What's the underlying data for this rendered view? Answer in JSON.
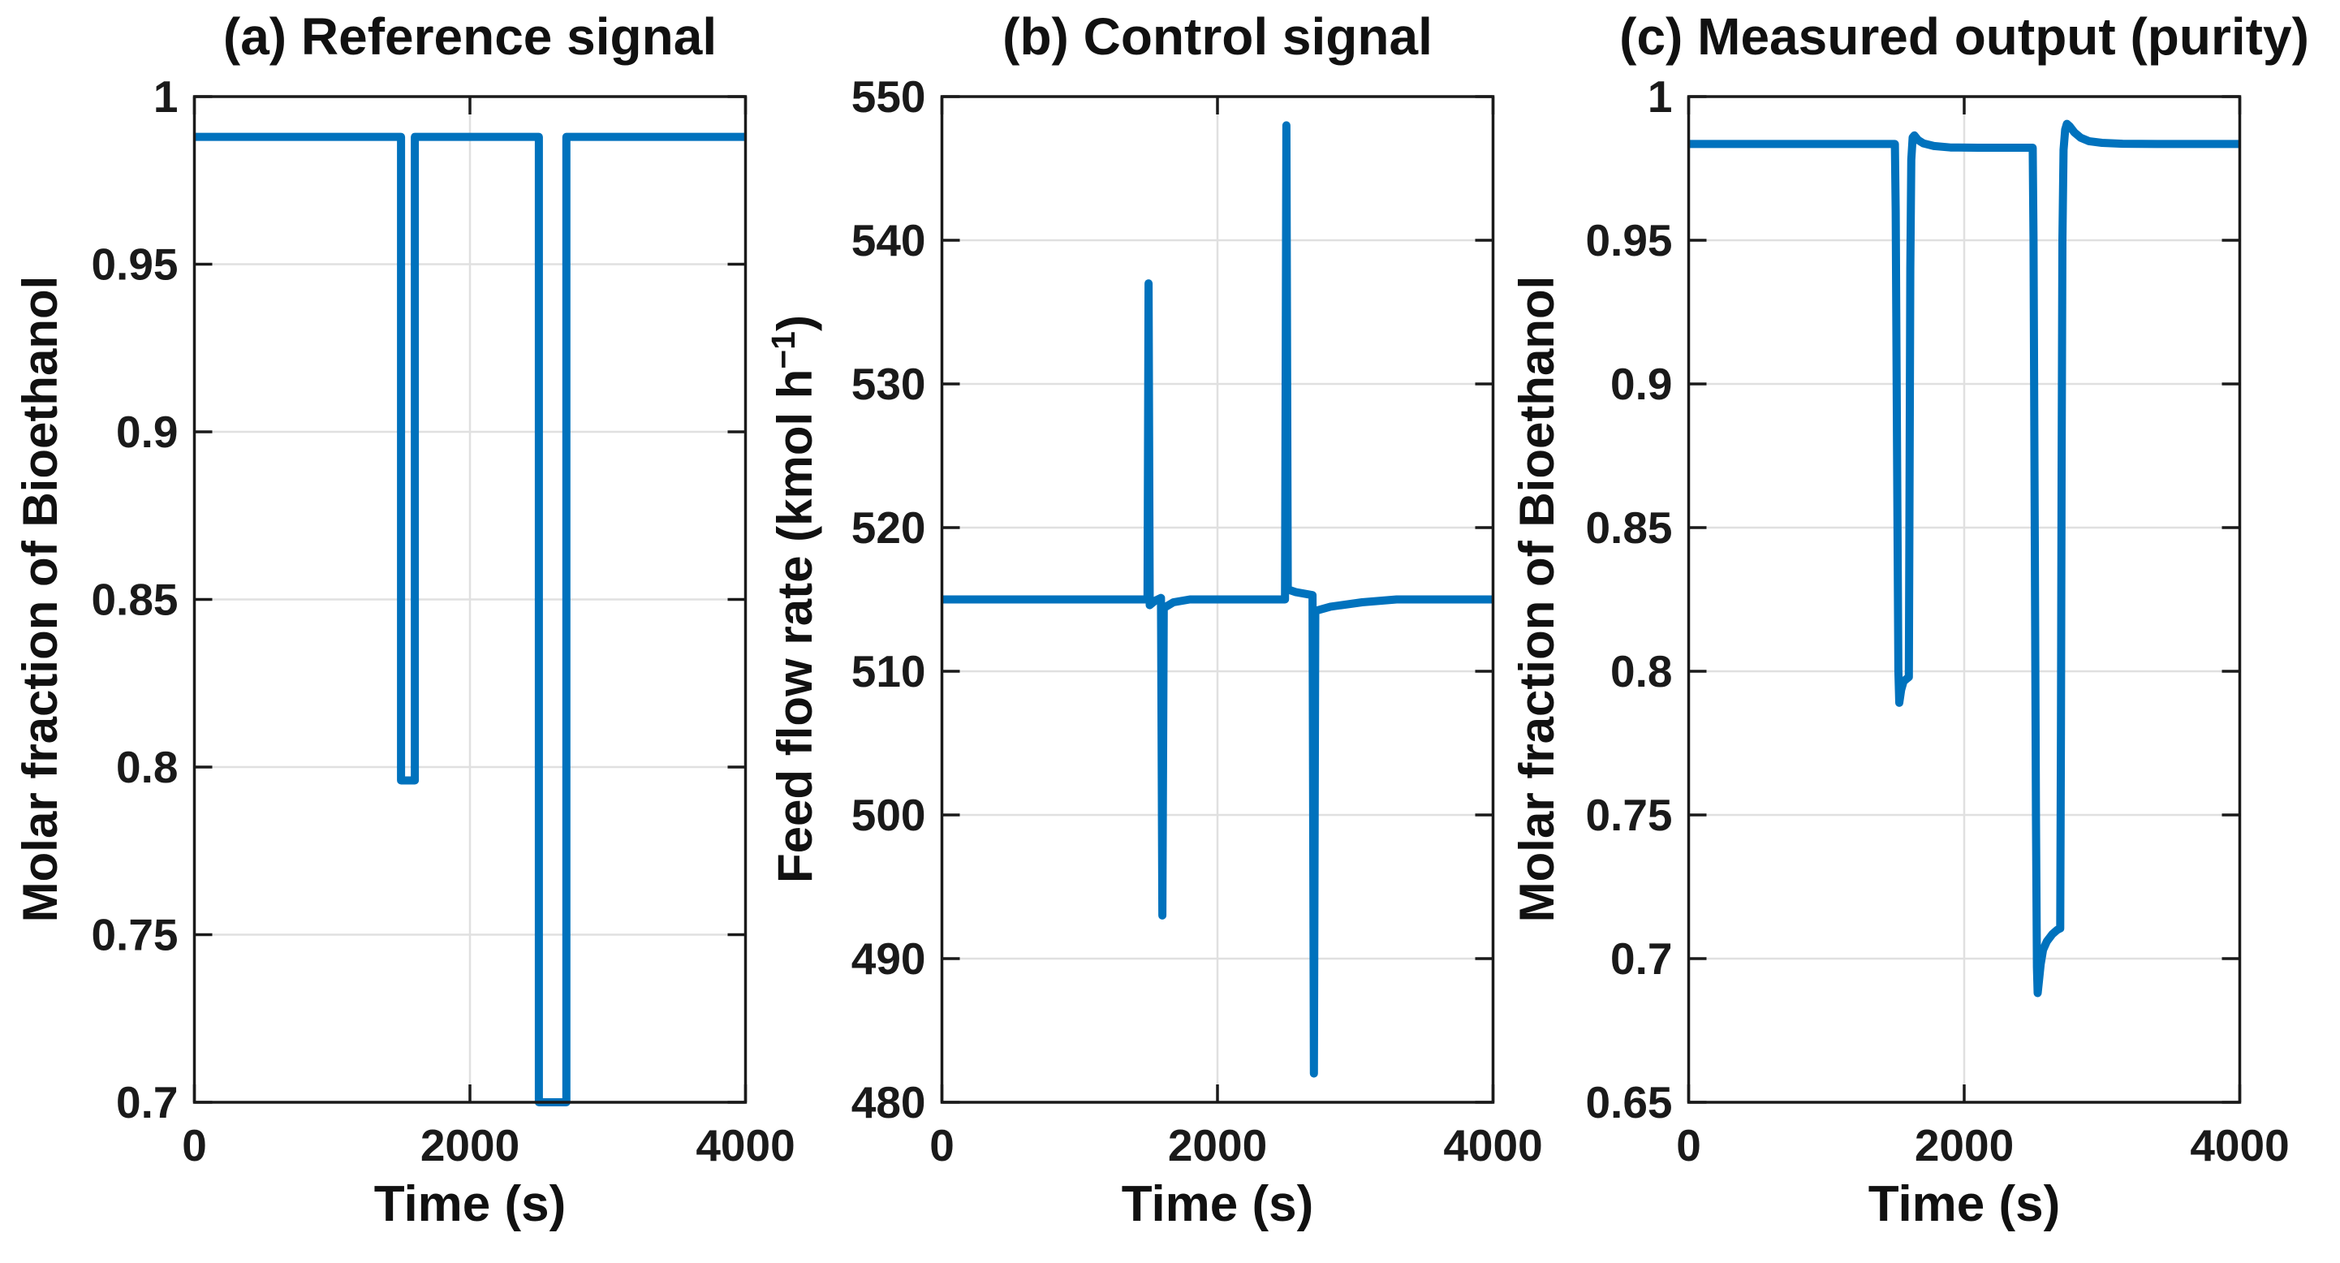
{
  "figure": {
    "background": "#ffffff",
    "line_color": "#0072BD",
    "grid_color": "#E0E0E0",
    "axis_color": "#1a1a1a",
    "text_color": "#1a1a1a"
  },
  "chart_data": [
    {
      "id": "a",
      "type": "line",
      "title": "(a) Reference signal",
      "xlabel": "Time (s)",
      "ylabel": {
        "pre": "Molar fraction of Bioethanol",
        "sup": "",
        "post": ""
      },
      "xlim": [
        0,
        4000
      ],
      "ylim": [
        0.7,
        1.0
      ],
      "xticks": [
        0,
        2000,
        4000
      ],
      "xtick_labels": [
        "0",
        "2000",
        "4000"
      ],
      "yticks": [
        0.7,
        0.75,
        0.8,
        0.85,
        0.9,
        0.95,
        1.0
      ],
      "ytick_labels": [
        "0.7",
        "0.75",
        "0.8",
        "0.85",
        "0.9",
        "0.95",
        "1"
      ],
      "grid": true,
      "legend": "none",
      "series": [
        {
          "name": "reference-signal",
          "points": [
            [
              0,
              0.988
            ],
            [
              1500,
              0.988
            ],
            [
              1500,
              0.796
            ],
            [
              1600,
              0.796
            ],
            [
              1600,
              0.988
            ],
            [
              2500,
              0.988
            ],
            [
              2500,
              0.7
            ],
            [
              2700,
              0.7
            ],
            [
              2700,
              0.988
            ],
            [
              4000,
              0.988
            ]
          ]
        }
      ]
    },
    {
      "id": "b",
      "type": "line",
      "title": "(b) Control signal",
      "xlabel": "Time (s)",
      "ylabel": {
        "pre": "Feed flow rate (kmol h",
        "sup": "−1",
        "post": ")"
      },
      "xlim": [
        0,
        4000
      ],
      "ylim": [
        480,
        550
      ],
      "xticks": [
        0,
        2000,
        4000
      ],
      "xtick_labels": [
        "0",
        "2000",
        "4000"
      ],
      "yticks": [
        480,
        490,
        500,
        510,
        520,
        530,
        540,
        550
      ],
      "ytick_labels": [
        "480",
        "490",
        "500",
        "510",
        "520",
        "530",
        "540",
        "550"
      ],
      "grid": true,
      "legend": "none",
      "series": [
        {
          "name": "control-signal",
          "points": [
            [
              0,
              515
            ],
            [
              1492,
              515
            ],
            [
              1500,
              537
            ],
            [
              1508,
              514.6
            ],
            [
              1545,
              514.9
            ],
            [
              1590,
              515.1
            ],
            [
              1600,
              493
            ],
            [
              1610,
              514.4
            ],
            [
              1680,
              514.8
            ],
            [
              1800,
              515
            ],
            [
              2490,
              515
            ],
            [
              2500,
              548
            ],
            [
              2510,
              515.7
            ],
            [
              2570,
              515.5
            ],
            [
              2690,
              515.3
            ],
            [
              2700,
              482
            ],
            [
              2710,
              514.2
            ],
            [
              2820,
              514.5
            ],
            [
              3050,
              514.8
            ],
            [
              3300,
              515
            ],
            [
              4000,
              515
            ]
          ]
        }
      ]
    },
    {
      "id": "c",
      "type": "line",
      "title": "(c) Measured output (purity)",
      "xlabel": "Time (s)",
      "ylabel": {
        "pre": "Molar fraction of Bioethanol",
        "sup": "",
        "post": ""
      },
      "xlim": [
        0,
        4000
      ],
      "ylim": [
        0.65,
        1.0
      ],
      "xticks": [
        0,
        2000,
        4000
      ],
      "xtick_labels": [
        "0",
        "2000",
        "4000"
      ],
      "yticks": [
        0.65,
        0.7,
        0.75,
        0.8,
        0.85,
        0.9,
        0.95,
        1.0
      ],
      "ytick_labels": [
        "0.65",
        "0.7",
        "0.75",
        "0.8",
        "0.85",
        "0.9",
        "0.95",
        "1"
      ],
      "grid": true,
      "legend": "none",
      "series": [
        {
          "name": "measured-output",
          "points": [
            [
              0,
              0.9835
            ],
            [
              1497,
              0.9835
            ],
            [
              1503,
              0.96
            ],
            [
              1512,
              0.88
            ],
            [
              1522,
              0.8
            ],
            [
              1529,
              0.789
            ],
            [
              1542,
              0.7935
            ],
            [
              1560,
              0.7965
            ],
            [
              1585,
              0.7975
            ],
            [
              1598,
              0.798
            ],
            [
              1603,
              0.86
            ],
            [
              1609,
              0.94
            ],
            [
              1616,
              0.978
            ],
            [
              1626,
              0.9858
            ],
            [
              1638,
              0.9865
            ],
            [
              1665,
              0.9849
            ],
            [
              1705,
              0.9837
            ],
            [
              1780,
              0.9828
            ],
            [
              1900,
              0.9823
            ],
            [
              2100,
              0.9822
            ],
            [
              2497,
              0.9822
            ],
            [
              2503,
              0.95
            ],
            [
              2512,
              0.85
            ],
            [
              2521,
              0.75
            ],
            [
              2528,
              0.697
            ],
            [
              2533,
              0.688
            ],
            [
              2542,
              0.692
            ],
            [
              2555,
              0.698
            ],
            [
              2572,
              0.703
            ],
            [
              2600,
              0.706
            ],
            [
              2640,
              0.7085
            ],
            [
              2675,
              0.71
            ],
            [
              2697,
              0.7105
            ],
            [
              2702,
              0.78
            ],
            [
              2707,
              0.87
            ],
            [
              2713,
              0.95
            ],
            [
              2721,
              0.9815
            ],
            [
              2733,
              0.9885
            ],
            [
              2745,
              0.9905
            ],
            [
              2765,
              0.9897
            ],
            [
              2800,
              0.9875
            ],
            [
              2845,
              0.9857
            ],
            [
              2905,
              0.9845
            ],
            [
              3000,
              0.9839
            ],
            [
              3150,
              0.9836
            ],
            [
              3400,
              0.9835
            ],
            [
              4000,
              0.9835
            ]
          ]
        }
      ]
    }
  ]
}
